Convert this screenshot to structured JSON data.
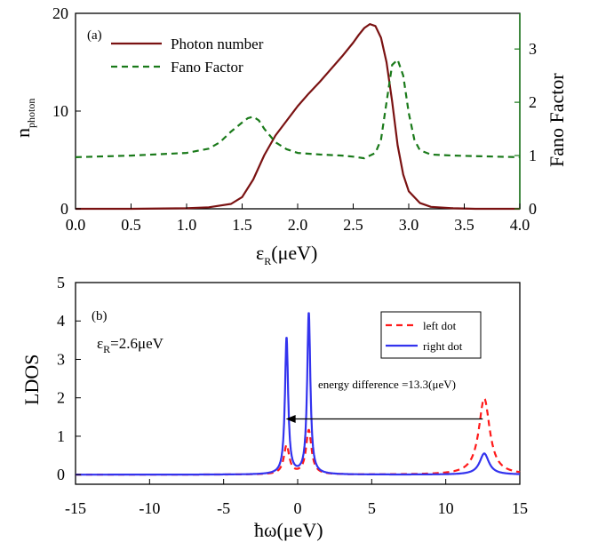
{
  "chart_data": [
    {
      "type": "line",
      "panel_label": "(a)",
      "xlabel": "ε",
      "xlabel_sub": "R",
      "xlabel_unit": "(μeV)",
      "ylabel": "n",
      "ylabel_sub": "photon",
      "y2label": "Fano Factor",
      "xlim": [
        0,
        4
      ],
      "ylim": [
        0,
        20
      ],
      "y2lim": [
        0,
        3.67
      ],
      "x_ticks": [
        "0.0",
        "0.5",
        "1.0",
        "1.5",
        "2.0",
        "2.5",
        "3.0",
        "3.5",
        "4.0"
      ],
      "x_tick_values": [
        0,
        0.5,
        1.0,
        1.5,
        2.0,
        2.5,
        3.0,
        3.5,
        4.0
      ],
      "y_ticks": [
        "0",
        "10",
        "20"
      ],
      "y_tick_values": [
        0,
        10,
        20
      ],
      "y2_ticks": [
        "0",
        "1",
        "2",
        "3"
      ],
      "y2_tick_values": [
        0,
        1,
        2,
        3
      ],
      "legend_position": "top-left",
      "grid": false,
      "series": [
        {
          "name": "Photon number",
          "axis": "left",
          "color": "#7a1212",
          "style": "solid",
          "x": [
            0,
            0.5,
            1.0,
            1.2,
            1.4,
            1.5,
            1.6,
            1.7,
            1.8,
            1.9,
            2.0,
            2.1,
            2.2,
            2.3,
            2.4,
            2.5,
            2.55,
            2.6,
            2.65,
            2.7,
            2.75,
            2.8,
            2.85,
            2.9,
            2.95,
            3.0,
            3.1,
            3.2,
            3.4,
            3.6,
            4.0
          ],
          "y": [
            0,
            0,
            0.05,
            0.15,
            0.5,
            1.2,
            3.0,
            5.5,
            7.5,
            9.0,
            10.5,
            11.8,
            13.0,
            14.3,
            15.6,
            17.0,
            17.8,
            18.5,
            18.9,
            18.7,
            17.5,
            15.0,
            11.0,
            6.5,
            3.5,
            1.8,
            0.6,
            0.2,
            0.05,
            0,
            0
          ]
        },
        {
          "name": "Fano Factor",
          "axis": "right",
          "color": "#1a7a1a",
          "style": "dashed",
          "x": [
            0,
            0.5,
            1.0,
            1.2,
            1.3,
            1.4,
            1.5,
            1.55,
            1.6,
            1.65,
            1.7,
            1.8,
            1.9,
            2.0,
            2.2,
            2.4,
            2.5,
            2.6,
            2.7,
            2.75,
            2.8,
            2.85,
            2.9,
            2.95,
            3.0,
            3.05,
            3.1,
            3.2,
            3.4,
            3.6,
            4.0
          ],
          "y": [
            0.97,
            1.0,
            1.05,
            1.13,
            1.25,
            1.45,
            1.62,
            1.7,
            1.73,
            1.66,
            1.5,
            1.25,
            1.12,
            1.05,
            1.02,
            1.0,
            0.98,
            0.95,
            1.05,
            1.3,
            2.0,
            2.7,
            2.8,
            2.5,
            1.8,
            1.3,
            1.1,
            1.02,
            1.0,
            0.99,
            0.97
          ]
        }
      ]
    },
    {
      "type": "line",
      "panel_label": "(b)",
      "annotation_param": "ε",
      "annotation_param_sub": "R",
      "annotation_param_value": "=2.6μeV",
      "arrow_label": "energy difference =13.3(μeV)",
      "arrow_from_x": 12.5,
      "arrow_to_x": -0.8,
      "arrow_y": 1.45,
      "xlabel": "ħω(μeV)",
      "ylabel": "LDOS",
      "xlim": [
        -15,
        15
      ],
      "ylim": [
        -0.25,
        5
      ],
      "x_ticks": [
        "-15",
        "-10",
        "-5",
        "0",
        "5",
        "10",
        "15"
      ],
      "x_tick_values": [
        -15,
        -10,
        -5,
        0,
        5,
        10,
        15
      ],
      "y_ticks": [
        "0",
        "1",
        "2",
        "3",
        "4",
        "5"
      ],
      "y_tick_values": [
        0,
        1,
        2,
        3,
        4,
        5
      ],
      "legend_position": "top-right",
      "grid": false,
      "series": [
        {
          "name": "left dot",
          "color": "#ff1a1a",
          "style": "dashed",
          "peaks": [
            {
              "center": -0.75,
              "height": 0.75,
              "width": 0.22
            },
            {
              "center": 0.75,
              "height": 1.15,
              "width": 0.22
            },
            {
              "center": 12.6,
              "height": 1.98,
              "width": 0.45
            }
          ]
        },
        {
          "name": "right dot",
          "color": "#3333ee",
          "style": "solid",
          "peaks": [
            {
              "center": -0.75,
              "height": 3.55,
              "width": 0.13
            },
            {
              "center": 0.75,
              "height": 4.2,
              "width": 0.13
            },
            {
              "center": 12.6,
              "height": 0.55,
              "width": 0.38
            }
          ]
        }
      ]
    }
  ]
}
